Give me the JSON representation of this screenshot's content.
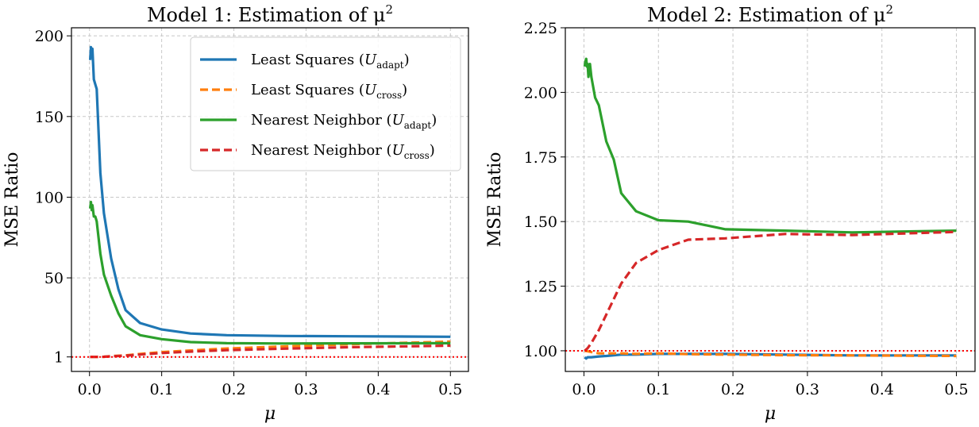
{
  "chart_data": [
    {
      "type": "line",
      "title": "Model 1: Estimation of μ",
      "title_sup": "2",
      "xlabel": "μ",
      "ylabel": "MSE Ratio",
      "xlim": [
        -0.025,
        0.525
      ],
      "ylim": [
        -8,
        205
      ],
      "xticks": [
        0,
        0.1,
        0.2,
        0.3,
        0.4,
        0.5
      ],
      "xtick_labels": [
        "0.0",
        "0.1",
        "0.2",
        "0.3",
        "0.4",
        "0.5"
      ],
      "yticks": [
        1,
        50,
        100,
        150,
        200
      ],
      "ytick_labels": [
        "1",
        "50",
        "100",
        "150",
        "200"
      ],
      "grid": true,
      "legend": "top-right",
      "reference_line": {
        "y": 1,
        "color": "#ff0000",
        "style": "dotted"
      },
      "series": [
        {
          "name": "Least Squares",
          "sub": "adapt",
          "color": "#1f77b4",
          "dash": "solid",
          "x": [
            0.001,
            0.002,
            0.003,
            0.004,
            0.006,
            0.008,
            0.01,
            0.015,
            0.02,
            0.03,
            0.04,
            0.05,
            0.07,
            0.1,
            0.14,
            0.19,
            0.27,
            0.36,
            0.5
          ],
          "y": [
            185,
            193,
            190,
            192,
            173,
            170,
            167,
            115,
            90,
            62,
            43,
            30,
            22,
            18,
            15.5,
            14.5,
            14,
            13.8,
            13.5
          ]
        },
        {
          "name": "Least Squares",
          "sub": "cross",
          "color": "#ff7f0e",
          "dash": "dashed",
          "x": [
            0.001,
            0.01,
            0.02,
            0.03,
            0.05,
            0.07,
            0.1,
            0.14,
            0.19,
            0.27,
            0.36,
            0.5
          ],
          "y": [
            1,
            1,
            1.1,
            1.5,
            2,
            2.8,
            4,
            5,
            6.2,
            7.5,
            8.8,
            10.5
          ]
        },
        {
          "name": "Nearest Neighbor",
          "sub": "adapt",
          "color": "#2ca02c",
          "dash": "solid",
          "x": [
            0.001,
            0.002,
            0.003,
            0.004,
            0.006,
            0.008,
            0.01,
            0.015,
            0.02,
            0.03,
            0.04,
            0.05,
            0.07,
            0.1,
            0.14,
            0.19,
            0.27,
            0.36,
            0.5
          ],
          "y": [
            93,
            97,
            92,
            95,
            88,
            88,
            85,
            65,
            52,
            39,
            28,
            20,
            14.5,
            12,
            10.2,
            9.5,
            9.3,
            9.4,
            9.5
          ]
        },
        {
          "name": "Nearest Neighbor",
          "sub": "cross",
          "color": "#d62728",
          "dash": "dashed",
          "x": [
            0.001,
            0.01,
            0.02,
            0.03,
            0.05,
            0.07,
            0.1,
            0.14,
            0.19,
            0.27,
            0.36,
            0.5
          ],
          "y": [
            1,
            1,
            1.1,
            1.4,
            1.8,
            2.5,
            3.4,
            4.3,
            5.2,
            6.1,
            7,
            8
          ]
        }
      ]
    },
    {
      "type": "line",
      "title": "Model 2: Estimation of μ",
      "title_sup": "2",
      "xlabel": "μ",
      "ylabel": "MSE Ratio",
      "xlim": [
        -0.025,
        0.525
      ],
      "ylim": [
        0.92,
        2.25
      ],
      "xticks": [
        0,
        0.1,
        0.2,
        0.3,
        0.4,
        0.5
      ],
      "xtick_labels": [
        "0.0",
        "0.1",
        "0.2",
        "0.3",
        "0.4",
        "0.5"
      ],
      "yticks": [
        1.0,
        1.25,
        1.5,
        1.75,
        2.0,
        2.25
      ],
      "ytick_labels": [
        "1.00",
        "1.25",
        "1.50",
        "1.75",
        "2.00",
        "2.25"
      ],
      "grid": true,
      "legend": "none",
      "reference_line": {
        "y": 1,
        "color": "#ff0000",
        "style": "dotted"
      },
      "series": [
        {
          "name": "Least Squares",
          "sub": "adapt",
          "color": "#1f77b4",
          "dash": "solid",
          "x": [
            0.001,
            0.003,
            0.005,
            0.01,
            0.02,
            0.03,
            0.05,
            0.07,
            0.1,
            0.14,
            0.19,
            0.27,
            0.36,
            0.5
          ],
          "y": [
            0.975,
            0.97,
            0.975,
            0.975,
            0.978,
            0.98,
            0.985,
            0.985,
            0.988,
            0.988,
            0.988,
            0.985,
            0.982,
            0.982
          ]
        },
        {
          "name": "Least Squares",
          "sub": "cross",
          "color": "#ff7f0e",
          "dash": "dashed",
          "x": [
            0.001,
            0.005,
            0.01,
            0.02,
            0.03,
            0.05,
            0.07,
            0.1,
            0.14,
            0.19,
            0.27,
            0.36,
            0.5
          ],
          "y": [
            1.0,
            0.998,
            0.995,
            0.99,
            0.99,
            0.99,
            0.988,
            0.99,
            0.987,
            0.985,
            0.983,
            0.982,
            0.98
          ]
        },
        {
          "name": "Nearest Neighbor",
          "sub": "adapt",
          "color": "#2ca02c",
          "dash": "solid",
          "x": [
            0.001,
            0.002,
            0.003,
            0.004,
            0.005,
            0.006,
            0.008,
            0.01,
            0.015,
            0.02,
            0.03,
            0.04,
            0.05,
            0.07,
            0.1,
            0.14,
            0.19,
            0.27,
            0.36,
            0.5
          ],
          "y": [
            2.1,
            2.12,
            2.13,
            2.1,
            2.11,
            2.06,
            2.11,
            2.06,
            1.98,
            1.95,
            1.81,
            1.74,
            1.61,
            1.54,
            1.505,
            1.5,
            1.47,
            1.465,
            1.458,
            1.465
          ]
        },
        {
          "name": "Nearest Neighbor",
          "sub": "cross",
          "color": "#d62728",
          "dash": "dashed",
          "x": [
            0.001,
            0.005,
            0.01,
            0.02,
            0.03,
            0.04,
            0.05,
            0.07,
            0.1,
            0.14,
            0.19,
            0.27,
            0.36,
            0.5
          ],
          "y": [
            1.0,
            1.01,
            1.03,
            1.08,
            1.14,
            1.2,
            1.26,
            1.34,
            1.39,
            1.43,
            1.435,
            1.452,
            1.448,
            1.46
          ]
        }
      ]
    }
  ]
}
